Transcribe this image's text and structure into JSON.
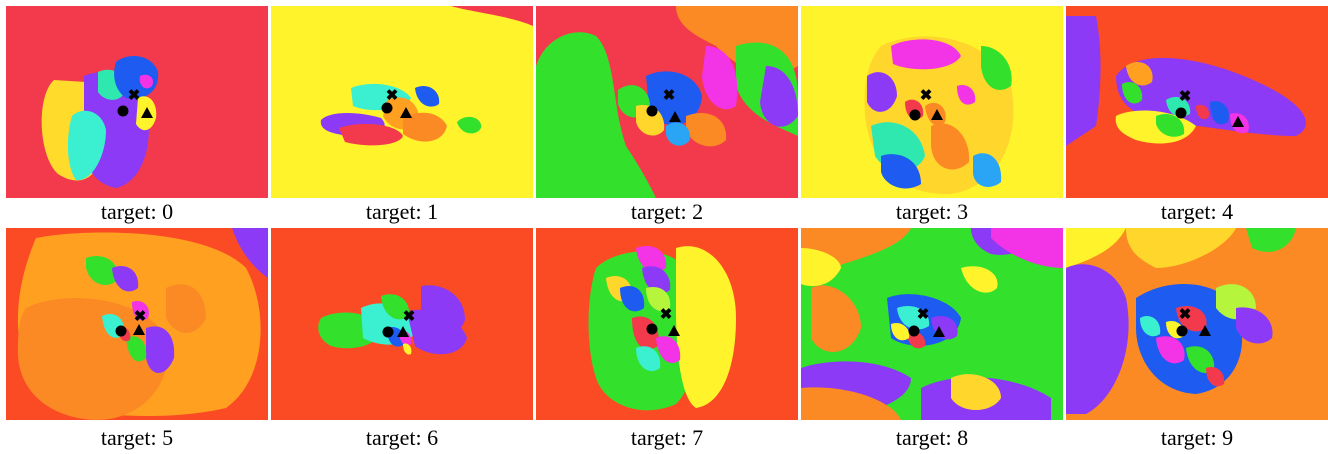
{
  "figure": {
    "panels": [
      {
        "caption": "target: 0"
      },
      {
        "caption": "target: 1"
      },
      {
        "caption": "target: 2"
      },
      {
        "caption": "target: 3"
      },
      {
        "caption": "target: 4"
      },
      {
        "caption": "target: 5"
      },
      {
        "caption": "target: 6"
      },
      {
        "caption": "target: 7"
      },
      {
        "caption": "target: 8"
      },
      {
        "caption": "target: 9"
      }
    ]
  },
  "colors": {
    "red": "#f23a4c",
    "orange_red": "#fb4b25",
    "orange": "#fb8a25",
    "amber": "#ffa021",
    "yellow": "#fff42c",
    "gold": "#ffd62c",
    "green": "#33e02c",
    "lime": "#b5f53c",
    "cyan": "#3af0d0",
    "teal": "#2ee8b0",
    "blue": "#1e5bf0",
    "sky": "#2aa4f5",
    "purple": "#8c3af5",
    "magenta": "#f233e6",
    "marker": "#000000"
  },
  "markers": [
    "circle-marker",
    "x-marker",
    "triangle-marker"
  ]
}
